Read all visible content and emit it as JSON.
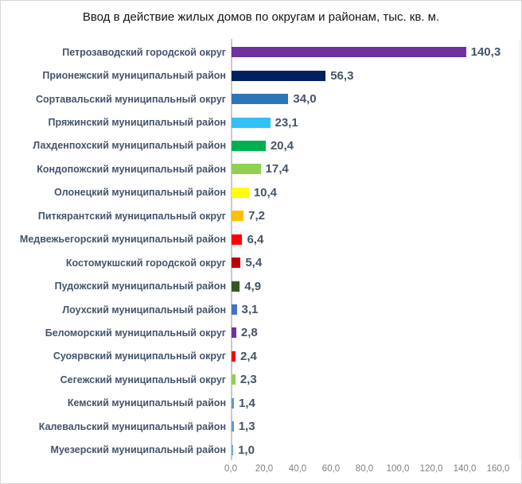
{
  "window": {
    "background": "#FFFFFF",
    "border_color": "#D6D6D6"
  },
  "chart_data": {
    "type": "bar",
    "orientation": "horizontal",
    "title": "Ввод в действие жилых домов по округам и районам, тыс. кв. м.",
    "categories": [
      "Петрозаводский городской округ",
      "Прионежский муниципальный район",
      "Сортавальский муниципальный округ",
      "Пряжинский муниципальный район",
      "Лахденпохский муниципальный район",
      "Кондопожский муниципальный район",
      "Олонецкий муниципальный район",
      "Питкярантский муниципальный округ",
      "Медвежьегорский муниципальный район",
      "Костомукшский городской округ",
      "Пудожский муниципальный район",
      "Лоухский муниципальный район",
      "Беломорский муниципальный округ",
      "Суоярвский муниципальный округ",
      "Сегежский муниципальный округ",
      "Кемский муниципальный район",
      "Калевальский муниципальный район",
      "Муезерский муниципальный район"
    ],
    "values": [
      140.3,
      56.3,
      34.0,
      23.1,
      20.4,
      17.4,
      10.4,
      7.2,
      6.4,
      5.4,
      4.9,
      3.1,
      2.8,
      2.4,
      2.3,
      1.4,
      1.3,
      1.0
    ],
    "value_labels": [
      "140,3",
      "56,3",
      "34,0",
      "23,1",
      "20,4",
      "17,4",
      "10,4",
      "7,2",
      "6,4",
      "5,4",
      "4,9",
      "3,1",
      "2,8",
      "2,4",
      "2,3",
      "1,4",
      "1,3",
      "1,0"
    ],
    "bar_colors": [
      "#7030A0",
      "#002060",
      "#2E75B6",
      "#33C1F5",
      "#00B050",
      "#92D050",
      "#FFFF00",
      "#FFC000",
      "#FF0000",
      "#C00000",
      "#385723",
      "#4472C4",
      "#7030A0",
      "#FF0000",
      "#92D050",
      "#5B9BD5",
      "#5B9BD5",
      "#6FA8DC"
    ],
    "xlabel": "",
    "ylabel": "",
    "xlim": [
      0,
      160
    ],
    "x_tick_values": [
      0,
      20,
      40,
      60,
      80,
      100,
      120,
      140,
      160
    ],
    "x_tick_labels": [
      "0,0",
      "20,0",
      "40,0",
      "60,0",
      "80,0",
      "100,0",
      "120,0",
      "140,0",
      "160,0"
    ],
    "grid": false,
    "legend": false,
    "data_label_color": "#44546A",
    "category_label_color": "#44546A",
    "tick_label_color": "#7F7F7F"
  }
}
